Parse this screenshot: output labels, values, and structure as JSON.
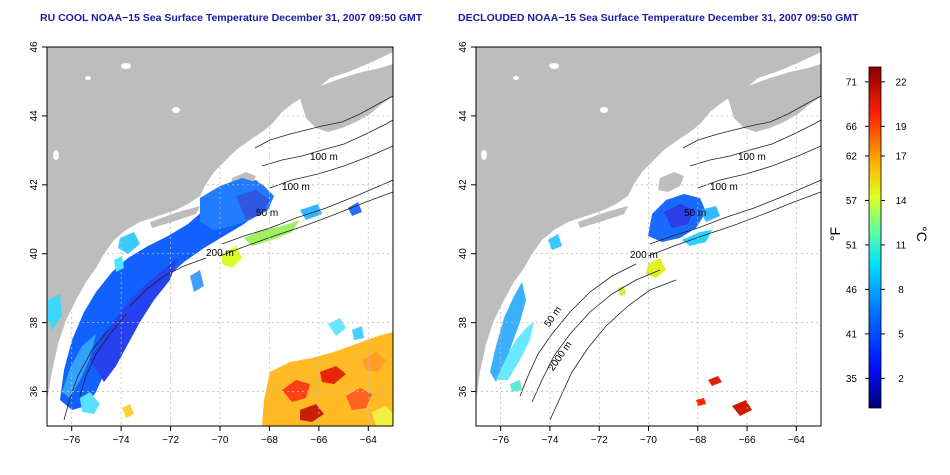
{
  "panels": [
    {
      "title": "RU COOL NOAA−15 Sea Surface Temperature December 31, 2007 09:50 GMT",
      "contour_labels": [
        "100 m",
        "100 m",
        "50 m",
        "200 m"
      ]
    },
    {
      "title": "DECLOUDED NOAA−15 Sea Surface Temperature December 31, 2007 09:50 GMT",
      "contour_labels": [
        "100 m",
        "100 m",
        "50 m",
        "200 m",
        "50 m",
        "2000 m"
      ]
    }
  ],
  "axes": {
    "x_ticks": [
      "−76",
      "−74",
      "−72",
      "−70",
      "−68",
      "−66",
      "−64"
    ],
    "y_ticks": [
      "36",
      "38",
      "40",
      "42",
      "44",
      "46"
    ],
    "xlim": [
      -77,
      -63
    ],
    "ylim": [
      35,
      46
    ]
  },
  "colorbar": {
    "unit_f": "°F",
    "unit_c": "°C",
    "ticks_f": [
      "71",
      "66",
      "62",
      "57",
      "51",
      "46",
      "41",
      "35"
    ],
    "ticks_c": [
      "22",
      "19",
      "17",
      "14",
      "11",
      "8",
      "5",
      "2"
    ],
    "range_c": [
      0,
      23
    ],
    "colors": [
      "#000080",
      "#0000ff",
      "#0080ff",
      "#00ffff",
      "#80ff80",
      "#ffff00",
      "#ff8000",
      "#ff0000",
      "#800000"
    ]
  },
  "colors": {
    "land": "#bdbdbd",
    "grid": "#bcbcbc",
    "title": "#1a1aa6"
  }
}
